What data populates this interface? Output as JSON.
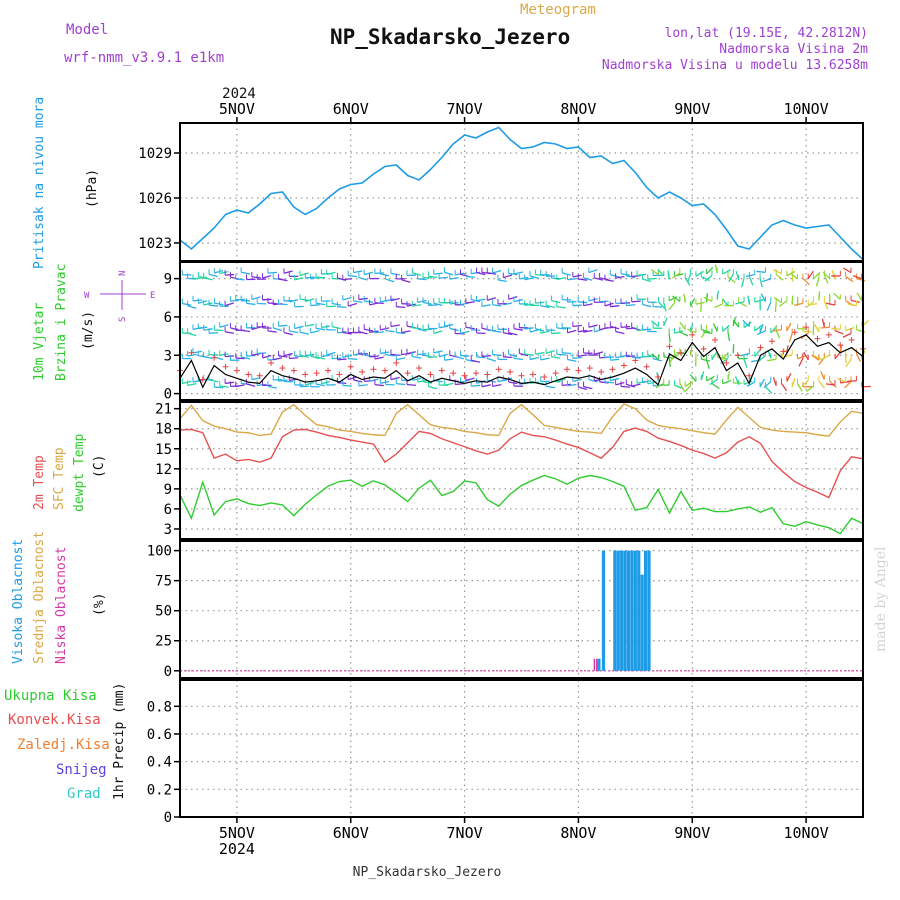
{
  "header": {
    "model_label": "Model",
    "model_name": "wrf-nmm_v3.9.1  e1km",
    "meteogram": "Meteogram",
    "station": "NP_Skadarsko_Jezero",
    "lonlat": "lon,lat (19.15E, 42.2812N)",
    "altitude": "Nadmorska Visina 2m",
    "model_altitude": "Nadmorska Visina u modelu 13.6258m",
    "footer_station": "NP_Skadarsko_Jezero",
    "signature": "made by Angel"
  },
  "colors": {
    "pressure": "#1e9be6",
    "temp2m": "#e65050",
    "sfc": "#dba848",
    "dewpt": "#2ecc2e",
    "high_cloud": "#1e9be6",
    "mid_cloud": "#dba848",
    "low_cloud": "#d43aa5",
    "purple_label": "#a040d0"
  },
  "chart_data": [
    {
      "id": "pressure",
      "type": "line",
      "title": "",
      "ylabel": [
        "Pritisak na nivou mora",
        "(hPa)"
      ],
      "ylim": [
        1021.8,
        1031.0
      ],
      "yticks": [
        1023,
        1026,
        1029
      ],
      "x_days": [
        "5NOV",
        "6NOV",
        "7NOV",
        "8NOV",
        "9NOV",
        "10NOV"
      ],
      "x_top_year": "2024",
      "series": [
        {
          "name": "Pritisak na nivou mora",
          "x": [
            4.5,
            4.6,
            4.7,
            4.8,
            4.9,
            5.0,
            5.1,
            5.2,
            5.3,
            5.4,
            5.5,
            5.6,
            5.7,
            5.8,
            5.9,
            6.0,
            6.1,
            6.2,
            6.3,
            6.4,
            6.5,
            6.6,
            6.7,
            6.8,
            6.9,
            7.0,
            7.1,
            7.2,
            7.3,
            7.4,
            7.5,
            7.6,
            7.7,
            7.8,
            7.9,
            8.0,
            8.1,
            8.2,
            8.3,
            8.4,
            8.5,
            8.6,
            8.7,
            8.8,
            8.9,
            9.0,
            9.1,
            9.2,
            9.3,
            9.4,
            9.5,
            9.6,
            9.7,
            9.8,
            9.9,
            10.0,
            10.1,
            10.2,
            10.3,
            10.4,
            10.5
          ],
          "y": [
            1023.2,
            1022.6,
            1023.3,
            1024.0,
            1024.9,
            1025.2,
            1025.0,
            1025.6,
            1026.3,
            1026.4,
            1025.4,
            1024.9,
            1025.3,
            1026.0,
            1026.6,
            1026.9,
            1027.0,
            1027.6,
            1028.1,
            1028.2,
            1027.5,
            1027.2,
            1027.9,
            1028.7,
            1029.6,
            1030.2,
            1030.0,
            1030.4,
            1030.7,
            1029.9,
            1029.3,
            1029.4,
            1029.7,
            1029.6,
            1029.3,
            1029.4,
            1028.7,
            1028.8,
            1028.3,
            1028.5,
            1027.7,
            1026.7,
            1026.0,
            1026.4,
            1026.0,
            1025.5,
            1025.6,
            1024.9,
            1023.9,
            1022.8,
            1022.6,
            1023.4,
            1024.2,
            1024.5,
            1024.2,
            1024.0,
            1024.1,
            1024.2,
            1023.4,
            1022.6,
            1021.9
          ]
        }
      ]
    },
    {
      "id": "wind",
      "type": "line",
      "title": "",
      "ylabel": [
        "10m Vjetar",
        "Brzina i Pravac",
        "(m/s)"
      ],
      "compass": [
        "N",
        "W",
        "E",
        "S"
      ],
      "ylim": [
        -0.5,
        10.3
      ],
      "yticks": [
        0,
        3,
        6,
        9
      ],
      "series": [
        {
          "name": "Brzina",
          "x": [
            4.5,
            4.6,
            4.7,
            4.8,
            4.9,
            5.0,
            5.1,
            5.2,
            5.3,
            5.4,
            5.5,
            5.6,
            5.7,
            5.8,
            5.9,
            6.0,
            6.1,
            6.2,
            6.3,
            6.4,
            6.5,
            6.6,
            6.7,
            6.8,
            6.9,
            7.0,
            7.1,
            7.2,
            7.3,
            7.4,
            7.5,
            7.6,
            7.7,
            7.8,
            7.9,
            8.0,
            8.1,
            8.2,
            8.3,
            8.4,
            8.5,
            8.6,
            8.7,
            8.8,
            8.9,
            9.0,
            9.1,
            9.2,
            9.3,
            9.4,
            9.5,
            9.6,
            9.7,
            9.8,
            9.9,
            10.0,
            10.1,
            10.2,
            10.3,
            10.4,
            10.5
          ],
          "y": [
            1.2,
            2.6,
            0.5,
            2.2,
            1.5,
            1.2,
            0.9,
            0.8,
            1.8,
            1.4,
            1.2,
            0.9,
            1.0,
            1.2,
            0.9,
            1.5,
            1.1,
            1.3,
            1.2,
            1.8,
            1.0,
            1.4,
            0.9,
            1.2,
            1.0,
            0.8,
            1.0,
            0.9,
            1.3,
            1.1,
            0.8,
            0.9,
            0.7,
            1.0,
            1.3,
            1.2,
            1.4,
            1.1,
            1.3,
            1.6,
            2.0,
            1.5,
            0.7,
            3.1,
            2.6,
            4.0,
            2.9,
            3.6,
            1.8,
            2.4,
            0.8,
            3.0,
            3.5,
            2.7,
            4.2,
            4.6,
            3.7,
            4.0,
            3.2,
            3.6,
            2.9
          ]
        }
      ]
    },
    {
      "id": "temperature",
      "type": "line",
      "title": "",
      "ylabel": [
        "2m Temp",
        "SFC Temp",
        "dewpt Temp",
        "(C)"
      ],
      "ylim": [
        1.5,
        22.0
      ],
      "yticks": [
        3,
        6,
        9,
        12,
        15,
        18,
        21
      ],
      "series": [
        {
          "name": "2m Temp",
          "x": [
            4.5,
            4.6,
            4.7,
            4.8,
            4.9,
            5.0,
            5.1,
            5.2,
            5.3,
            5.4,
            5.5,
            5.6,
            5.7,
            5.8,
            5.9,
            6.0,
            6.1,
            6.2,
            6.3,
            6.4,
            6.5,
            6.6,
            6.7,
            6.8,
            6.9,
            7.0,
            7.1,
            7.2,
            7.3,
            7.4,
            7.5,
            7.6,
            7.7,
            7.8,
            7.9,
            8.0,
            8.1,
            8.2,
            8.3,
            8.4,
            8.5,
            8.6,
            8.7,
            8.8,
            8.9,
            9.0,
            9.1,
            9.2,
            9.3,
            9.4,
            9.5,
            9.6,
            9.7,
            9.8,
            9.9,
            10.0,
            10.1,
            10.2,
            10.3,
            10.4,
            10.5
          ],
          "y": [
            17.8,
            17.9,
            17.4,
            13.6,
            14.2,
            13.2,
            13.4,
            13.0,
            13.6,
            16.8,
            17.8,
            17.9,
            17.5,
            17.0,
            16.7,
            16.3,
            16.0,
            15.7,
            13.0,
            14.2,
            15.9,
            17.6,
            17.3,
            16.5,
            15.9,
            15.3,
            14.7,
            14.2,
            14.8,
            16.5,
            17.5,
            17.0,
            16.8,
            16.3,
            15.7,
            15.2,
            14.4,
            13.6,
            15.2,
            17.6,
            18.1,
            17.6,
            16.6,
            16.1,
            15.5,
            14.8,
            14.3,
            13.6,
            14.4,
            16.0,
            16.8,
            15.8,
            13.1,
            11.5,
            10.1,
            9.2,
            8.5,
            7.7,
            11.7,
            13.8,
            13.5
          ]
        },
        {
          "name": "SFC Temp",
          "x": [
            4.5,
            4.6,
            4.7,
            4.8,
            4.9,
            5.0,
            5.1,
            5.2,
            5.3,
            5.4,
            5.5,
            5.6,
            5.7,
            5.8,
            5.9,
            6.0,
            6.1,
            6.2,
            6.3,
            6.4,
            6.5,
            6.6,
            6.7,
            6.8,
            6.9,
            7.0,
            7.1,
            7.2,
            7.3,
            7.4,
            7.5,
            7.6,
            7.7,
            7.8,
            7.9,
            8.0,
            8.1,
            8.2,
            8.3,
            8.4,
            8.5,
            8.6,
            8.7,
            8.8,
            8.9,
            9.0,
            9.1,
            9.2,
            9.3,
            9.4,
            9.5,
            9.6,
            9.7,
            9.8,
            9.9,
            10.0,
            10.1,
            10.2,
            10.3,
            10.4,
            10.5
          ],
          "y": [
            19.5,
            21.5,
            19.2,
            18.4,
            18.0,
            17.5,
            17.4,
            17.0,
            17.2,
            20.5,
            21.6,
            20.0,
            18.6,
            18.3,
            17.8,
            17.6,
            17.3,
            17.1,
            17.0,
            20.3,
            21.6,
            20.1,
            18.6,
            18.2,
            18.0,
            17.6,
            17.4,
            17.1,
            17.0,
            20.3,
            21.6,
            20.1,
            18.5,
            18.2,
            17.9,
            17.6,
            17.5,
            17.3,
            19.8,
            21.7,
            21.0,
            19.3,
            18.5,
            18.2,
            18.0,
            17.7,
            17.4,
            17.2,
            19.3,
            21.2,
            19.7,
            18.2,
            17.8,
            17.6,
            17.5,
            17.4,
            17.1,
            16.9,
            19.0,
            20.6,
            20.3
          ]
        },
        {
          "name": "dewpt Temp",
          "x": [
            4.5,
            4.6,
            4.7,
            4.8,
            4.9,
            5.0,
            5.1,
            5.2,
            5.3,
            5.4,
            5.5,
            5.6,
            5.7,
            5.8,
            5.9,
            6.0,
            6.1,
            6.2,
            6.3,
            6.4,
            6.5,
            6.6,
            6.7,
            6.8,
            6.9,
            7.0,
            7.1,
            7.2,
            7.3,
            7.4,
            7.5,
            7.6,
            7.7,
            7.8,
            7.9,
            8.0,
            8.1,
            8.2,
            8.3,
            8.4,
            8.5,
            8.6,
            8.7,
            8.8,
            8.9,
            9.0,
            9.1,
            9.2,
            9.3,
            9.4,
            9.5,
            9.6,
            9.7,
            9.8,
            9.9,
            10.0,
            10.1,
            10.2,
            10.3,
            10.4,
            10.5
          ],
          "y": [
            8.1,
            4.6,
            10.0,
            5.1,
            7.1,
            7.5,
            6.8,
            6.5,
            6.9,
            6.6,
            5.0,
            6.7,
            8.1,
            9.4,
            10.1,
            10.3,
            9.4,
            10.2,
            9.6,
            8.4,
            7.1,
            9.1,
            10.3,
            8.0,
            8.6,
            10.2,
            9.9,
            7.4,
            6.4,
            8.2,
            9.5,
            10.3,
            11.0,
            10.5,
            9.7,
            10.6,
            11.0,
            10.7,
            10.1,
            9.4,
            5.8,
            6.2,
            8.9,
            5.4,
            8.6,
            5.8,
            6.1,
            5.6,
            5.6,
            6.0,
            6.3,
            5.5,
            6.2,
            3.8,
            3.4,
            4.1,
            3.6,
            3.2,
            2.3,
            4.6,
            3.8
          ]
        }
      ]
    },
    {
      "id": "clouds",
      "type": "bar",
      "title": "",
      "ylabel": [
        "Visoka Oblacnost",
        "Srednja Oblacnost",
        "Niska Oblacnost",
        "(%)"
      ],
      "ylim": [
        -6,
        108
      ],
      "yticks": [
        0,
        25,
        50,
        75,
        100
      ],
      "series": [
        {
          "name": "Visoka Oblacnost",
          "x": [
            8.18,
            8.22,
            8.29,
            8.32,
            8.35,
            8.38,
            8.41,
            8.44,
            8.47,
            8.5,
            8.53,
            8.56,
            8.59,
            8.62
          ],
          "y": [
            10,
            100,
            0,
            100,
            100,
            100,
            100,
            100,
            100,
            100,
            100,
            80,
            100,
            100
          ]
        },
        {
          "name": "Niska Oblacnost",
          "x": [
            8.14,
            8.16
          ],
          "y": [
            10,
            10
          ]
        }
      ]
    },
    {
      "id": "precip",
      "type": "bar",
      "title": "",
      "ylabel": [
        "Ukupna Kisa",
        "Konvek.Kisa",
        "Zaledj.Kisa",
        "Snijeg",
        "Grad",
        "1hr Precip (mm)"
      ],
      "ylim": [
        0,
        0.99
      ],
      "yticks": [
        0,
        0.2,
        0.4,
        0.6,
        0.8
      ],
      "ytick_labels": [
        "0",
        "0.2",
        "0.4",
        "0.6",
        "0.8"
      ],
      "x_bottom_year": "2024",
      "series": []
    }
  ]
}
